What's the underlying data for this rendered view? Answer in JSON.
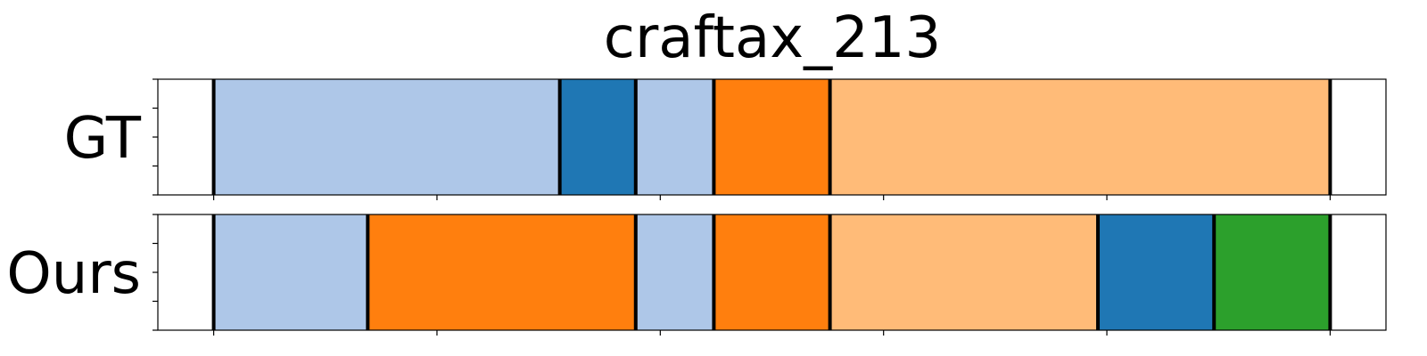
{
  "chart_data": {
    "type": "segmentation",
    "title": "craftax_213",
    "x_range": [
      -25,
      525
    ],
    "rows": [
      {
        "label": "GT",
        "segments": [
          {
            "start": 0,
            "end": 155,
            "color": "#aec7e8"
          },
          {
            "start": 155,
            "end": 189,
            "color": "#1f77b4"
          },
          {
            "start": 189,
            "end": 224,
            "color": "#aec7e8"
          },
          {
            "start": 224,
            "end": 276,
            "color": "#ff7f0e"
          },
          {
            "start": 276,
            "end": 500,
            "color": "#ffbb78"
          }
        ]
      },
      {
        "label": "Ours",
        "segments": [
          {
            "start": 0,
            "end": 69,
            "color": "#aec7e8"
          },
          {
            "start": 69,
            "end": 189,
            "color": "#ff7f0e"
          },
          {
            "start": 189,
            "end": 224,
            "color": "#aec7e8"
          },
          {
            "start": 224,
            "end": 276,
            "color": "#ff7f0e"
          },
          {
            "start": 276,
            "end": 396,
            "color": "#ffbb78"
          },
          {
            "start": 396,
            "end": 448,
            "color": "#1f77b4"
          },
          {
            "start": 448,
            "end": 500,
            "color": "#2ca02c"
          }
        ]
      }
    ],
    "x_ticks": [
      0,
      100,
      200,
      300,
      400,
      500
    ],
    "y_ticks_per_row": 5,
    "grid": false
  }
}
